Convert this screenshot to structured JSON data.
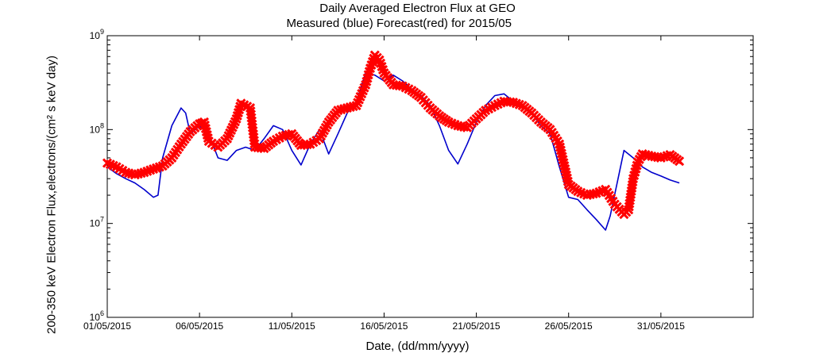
{
  "chart_data": {
    "type": "line",
    "title_line1": "Daily Averaged Electron Flux at GEO",
    "title_line2": "Measured (blue) Forecast(red) for 2015/05",
    "xlabel": "Date, (dd/mm/yyyy)",
    "ylabel": "200-350 keV Electron Flux,electrons/(cm² s keV day)",
    "yscale": "log",
    "ylim": [
      1000000,
      1000000000
    ],
    "xlim": [
      "01/05/2015",
      "05/06/2015"
    ],
    "xticks": [
      "01/05/2015",
      "06/05/2015",
      "11/05/2015",
      "16/05/2015",
      "21/05/2015",
      "26/05/2015",
      "31/05/2015"
    ],
    "yticks": [
      "10^6",
      "10^7",
      "10^8",
      "10^9"
    ],
    "series": [
      {
        "color": "#0000cc",
        "style": "line",
        "points": [
          [
            "01/05/2015 00:00",
            40000000.0
          ],
          [
            "01/05/2015 12:00",
            34000000.0
          ],
          [
            "02/05/2015 00:00",
            30000000.0
          ],
          [
            "02/05/2015 12:00",
            27000000.0
          ],
          [
            "03/05/2015 00:00",
            23000000.0
          ],
          [
            "03/05/2015 12:00",
            19000000.0
          ],
          [
            "03/05/2015 18:00",
            20000000.0
          ],
          [
            "04/05/2015 00:00",
            50000000.0
          ],
          [
            "04/05/2015 12:00",
            110000000.0
          ],
          [
            "05/05/2015 00:00",
            170000000.0
          ],
          [
            "05/05/2015 06:00",
            150000000.0
          ],
          [
            "05/05/2015 12:00",
            90000000.0
          ],
          [
            "06/05/2015 00:00",
            110000000.0
          ],
          [
            "06/05/2015 12:00",
            90000000.0
          ],
          [
            "07/05/2015 00:00",
            50000000.0
          ],
          [
            "07/05/2015 12:00",
            47000000.0
          ],
          [
            "08/05/2015 00:00",
            60000000.0
          ],
          [
            "08/05/2015 12:00",
            65000000.0
          ],
          [
            "09/05/2015 00:00",
            60000000.0
          ],
          [
            "09/05/2015 12:00",
            80000000.0
          ],
          [
            "10/05/2015 00:00",
            110000000.0
          ],
          [
            "10/05/2015 12:00",
            100000000.0
          ],
          [
            "11/05/2015 00:00",
            60000000.0
          ],
          [
            "11/05/2015 12:00",
            42000000.0
          ],
          [
            "12/05/2015 00:00",
            70000000.0
          ],
          [
            "12/05/2015 12:00",
            100000000.0
          ],
          [
            "13/05/2015 00:00",
            55000000.0
          ],
          [
            "13/05/2015 12:00",
            90000000.0
          ],
          [
            "14/05/2015 00:00",
            150000000.0
          ],
          [
            "14/05/2015 12:00",
            200000000.0
          ],
          [
            "15/05/2015 00:00",
            400000000.0
          ],
          [
            "15/05/2015 12:00",
            380000000.0
          ],
          [
            "16/05/2015 00:00",
            330000000.0
          ],
          [
            "16/05/2015 12:00",
            380000000.0
          ],
          [
            "17/05/2015 00:00",
            330000000.0
          ],
          [
            "17/05/2015 12:00",
            270000000.0
          ],
          [
            "18/05/2015 00:00",
            230000000.0
          ],
          [
            "18/05/2015 12:00",
            180000000.0
          ],
          [
            "19/05/2015 00:00",
            110000000.0
          ],
          [
            "19/05/2015 12:00",
            60000000.0
          ],
          [
            "20/05/2015 00:00",
            43000000.0
          ],
          [
            "20/05/2015 12:00",
            70000000.0
          ],
          [
            "21/05/2015 00:00",
            120000000.0
          ],
          [
            "21/05/2015 12:00",
            180000000.0
          ],
          [
            "22/05/2015 00:00",
            230000000.0
          ],
          [
            "22/05/2015 12:00",
            240000000.0
          ],
          [
            "23/05/2015 00:00",
            200000000.0
          ],
          [
            "23/05/2015 12:00",
            180000000.0
          ],
          [
            "24/05/2015 00:00",
            150000000.0
          ],
          [
            "24/05/2015 12:00",
            110000000.0
          ],
          [
            "25/05/2015 00:00",
            90000000.0
          ],
          [
            "25/05/2015 12:00",
            40000000.0
          ],
          [
            "26/05/2015 00:00",
            19000000.0
          ],
          [
            "26/05/2015 12:00",
            18000000.0
          ],
          [
            "27/05/2015 00:00",
            14000000.0
          ],
          [
            "27/05/2015 12:00",
            11000000.0
          ],
          [
            "28/05/2015 00:00",
            8500000.0
          ],
          [
            "28/05/2015 06:00",
            12000000.0
          ],
          [
            "28/05/2015 18:00",
            35000000.0
          ],
          [
            "29/05/2015 00:00",
            60000000.0
          ],
          [
            "29/05/2015 12:00",
            50000000.0
          ],
          [
            "30/05/2015 00:00",
            40000000.0
          ],
          [
            "30/05/2015 12:00",
            35000000.0
          ],
          [
            "31/05/2015 00:00",
            32000000.0
          ],
          [
            "31/05/2015 12:00",
            29000000.0
          ],
          [
            "01/06/2015 00:00",
            27000000.0
          ]
        ]
      },
      {
        "color": "#ff0000",
        "style": "x-markers",
        "points": [
          [
            "01/05/2015 00:00",
            44000000.0
          ],
          [
            "01/05/2015 12:00",
            40000000.0
          ],
          [
            "02/05/2015 00:00",
            35000000.0
          ],
          [
            "02/05/2015 12:00",
            33000000.0
          ],
          [
            "03/05/2015 00:00",
            35000000.0
          ],
          [
            "03/05/2015 12:00",
            38000000.0
          ],
          [
            "04/05/2015 00:00",
            41000000.0
          ],
          [
            "04/05/2015 12:00",
            50000000.0
          ],
          [
            "05/05/2015 00:00",
            70000000.0
          ],
          [
            "05/05/2015 12:00",
            95000000.0
          ],
          [
            "06/05/2015 00:00",
            115000000.0
          ],
          [
            "06/05/2015 06:00",
            120000000.0
          ],
          [
            "06/05/2015 12:00",
            75000000.0
          ],
          [
            "07/05/2015 00:00",
            65000000.0
          ],
          [
            "07/05/2015 12:00",
            80000000.0
          ],
          [
            "08/05/2015 00:00",
            130000000.0
          ],
          [
            "08/05/2015 06:00",
            190000000.0
          ],
          [
            "08/05/2015 18:00",
            170000000.0
          ],
          [
            "09/05/2015 00:00",
            65000000.0
          ],
          [
            "09/05/2015 12:00",
            63000000.0
          ],
          [
            "10/05/2015 00:00",
            75000000.0
          ],
          [
            "10/05/2015 12:00",
            85000000.0
          ],
          [
            "11/05/2015 00:00",
            90000000.0
          ],
          [
            "11/05/2015 12:00",
            68000000.0
          ],
          [
            "12/05/2015 00:00",
            70000000.0
          ],
          [
            "12/05/2015 12:00",
            80000000.0
          ],
          [
            "13/05/2015 00:00",
            120000000.0
          ],
          [
            "13/05/2015 12:00",
            160000000.0
          ],
          [
            "14/05/2015 00:00",
            170000000.0
          ],
          [
            "14/05/2015 12:00",
            180000000.0
          ],
          [
            "15/05/2015 00:00",
            300000000.0
          ],
          [
            "15/05/2015 06:00",
            450000000.0
          ],
          [
            "15/05/2015 12:00",
            620000000.0
          ],
          [
            "15/05/2015 18:00",
            550000000.0
          ],
          [
            "16/05/2015 00:00",
            400000000.0
          ],
          [
            "16/05/2015 12:00",
            300000000.0
          ],
          [
            "17/05/2015 00:00",
            290000000.0
          ],
          [
            "17/05/2015 12:00",
            260000000.0
          ],
          [
            "18/05/2015 00:00",
            220000000.0
          ],
          [
            "18/05/2015 12:00",
            170000000.0
          ],
          [
            "19/05/2015 00:00",
            140000000.0
          ],
          [
            "19/05/2015 12:00",
            120000000.0
          ],
          [
            "20/05/2015 00:00",
            110000000.0
          ],
          [
            "20/05/2015 12:00",
            105000000.0
          ],
          [
            "21/05/2015 00:00",
            130000000.0
          ],
          [
            "21/05/2015 12:00",
            160000000.0
          ],
          [
            "22/05/2015 00:00",
            180000000.0
          ],
          [
            "22/05/2015 12:00",
            200000000.0
          ],
          [
            "23/05/2015 00:00",
            195000000.0
          ],
          [
            "23/05/2015 12:00",
            180000000.0
          ],
          [
            "24/05/2015 00:00",
            150000000.0
          ],
          [
            "24/05/2015 12:00",
            120000000.0
          ],
          [
            "25/05/2015 00:00",
            100000000.0
          ],
          [
            "25/05/2015 12:00",
            70000000.0
          ],
          [
            "26/05/2015 00:00",
            26000000.0
          ],
          [
            "26/05/2015 12:00",
            22000000.0
          ],
          [
            "27/05/2015 00:00",
            20000000.0
          ],
          [
            "27/05/2015 12:00",
            21000000.0
          ],
          [
            "28/05/2015 00:00",
            23000000.0
          ],
          [
            "28/05/2015 12:00",
            16000000.0
          ],
          [
            "29/05/2015 00:00",
            12500000.0
          ],
          [
            "29/05/2015 06:00",
            14000000.0
          ],
          [
            "29/05/2015 12:00",
            30000000.0
          ],
          [
            "29/05/2015 18:00",
            45000000.0
          ],
          [
            "30/05/2015 00:00",
            55000000.0
          ],
          [
            "30/05/2015 12:00",
            52000000.0
          ],
          [
            "31/05/2015 00:00",
            50000000.0
          ],
          [
            "31/05/2015 12:00",
            54000000.0
          ],
          [
            "01/06/2015 00:00",
            46000000.0
          ]
        ]
      }
    ]
  }
}
